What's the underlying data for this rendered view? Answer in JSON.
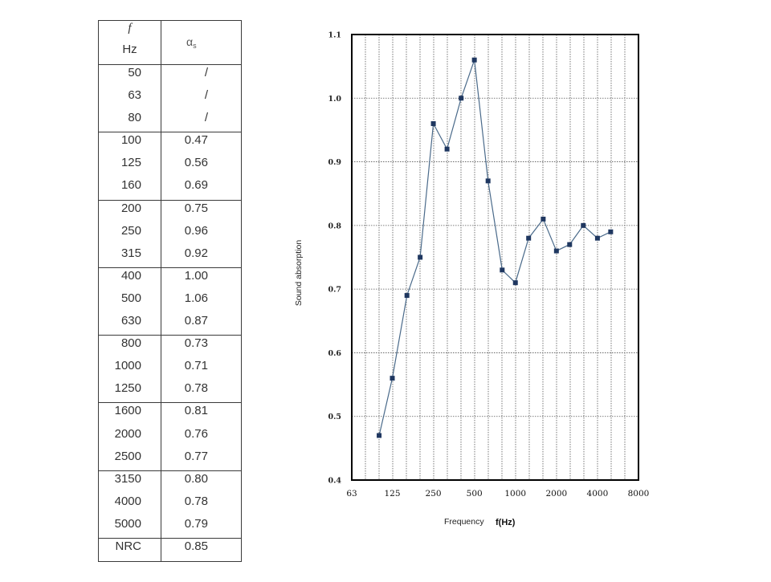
{
  "table": {
    "header": {
      "freq_symbol": "f",
      "freq_unit": "Hz",
      "alpha_symbol": "α",
      "alpha_subscript": "s"
    },
    "groups": [
      [
        {
          "freq": "50",
          "alpha": "/"
        },
        {
          "freq": "63",
          "alpha": "/"
        },
        {
          "freq": "80",
          "alpha": "/"
        }
      ],
      [
        {
          "freq": "100",
          "alpha": "0.47"
        },
        {
          "freq": "125",
          "alpha": "0.56"
        },
        {
          "freq": "160",
          "alpha": "0.69"
        }
      ],
      [
        {
          "freq": "200",
          "alpha": "0.75"
        },
        {
          "freq": "250",
          "alpha": "0.96"
        },
        {
          "freq": "315",
          "alpha": "0.92"
        }
      ],
      [
        {
          "freq": "400",
          "alpha": "1.00"
        },
        {
          "freq": "500",
          "alpha": "1.06"
        },
        {
          "freq": "630",
          "alpha": "0.87"
        }
      ],
      [
        {
          "freq": "800",
          "alpha": "0.73"
        },
        {
          "freq": "1000",
          "alpha": "0.71"
        },
        {
          "freq": "1250",
          "alpha": "0.78"
        }
      ],
      [
        {
          "freq": "1600",
          "alpha": "0.81"
        },
        {
          "freq": "2000",
          "alpha": "0.76"
        },
        {
          "freq": "2500",
          "alpha": "0.77"
        }
      ],
      [
        {
          "freq": "3150",
          "alpha": "0.80"
        },
        {
          "freq": "4000",
          "alpha": "0.78"
        },
        {
          "freq": "5000",
          "alpha": "0.79"
        }
      ]
    ],
    "summary": {
      "label": "NRC",
      "value": "0.85"
    }
  },
  "chart_data": {
    "type": "line",
    "xscale": "log",
    "x": [
      100,
      125,
      160,
      200,
      250,
      315,
      400,
      500,
      630,
      800,
      1000,
      1250,
      1600,
      2000,
      2500,
      3150,
      4000,
      5000
    ],
    "series": [
      {
        "values": [
          0.47,
          0.56,
          0.69,
          0.75,
          0.96,
          0.92,
          1.0,
          1.06,
          0.87,
          0.73,
          0.71,
          0.78,
          0.81,
          0.76,
          0.77,
          0.8,
          0.78,
          0.79
        ]
      }
    ],
    "xlim": [
      63,
      8000
    ],
    "ylim": [
      0.4,
      1.1
    ],
    "xticks": [
      "63",
      "125",
      "250",
      "500",
      "1000",
      "2000",
      "4000",
      "8000"
    ],
    "yticks": [
      "0.4",
      "0.5",
      "0.6",
      "0.7",
      "0.8",
      "0.9",
      "1.0",
      "1.1"
    ],
    "xlabel": "Frequency",
    "xlabel_unit": "f(Hz)",
    "ylabel": "Sound absorption",
    "grid": true,
    "colors": {
      "line": "#4a6a8a",
      "marker": "#1f3760",
      "grid": "#555555",
      "frame": "#000000"
    }
  }
}
